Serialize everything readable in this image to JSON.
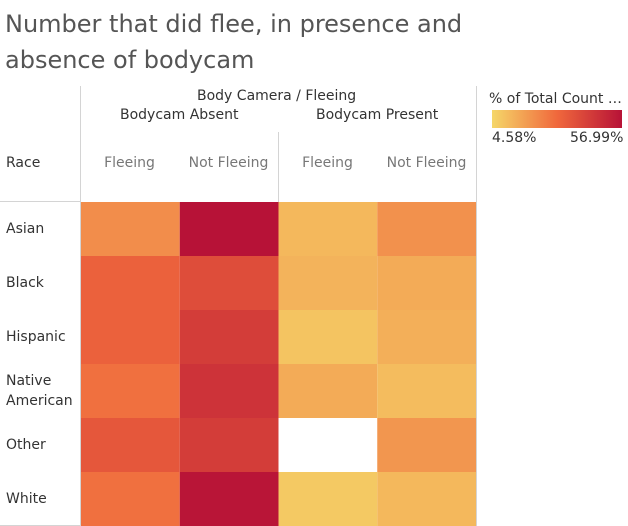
{
  "chart_data": {
    "type": "heatmap",
    "title": "Number that did flee, in presence and absence of bodycam",
    "column_header": "Body Camera / Fleeing",
    "row_header": "Race",
    "column_groups": [
      "Bodycam Absent",
      "Bodycam Present"
    ],
    "columns": [
      {
        "group": "Bodycam Absent",
        "label": "Fleeing"
      },
      {
        "group": "Bodycam Absent",
        "label": "Not Fleeing"
      },
      {
        "group": "Bodycam Present",
        "label": "Fleeing"
      },
      {
        "group": "Bodycam Present",
        "label": "Not Fleeing"
      }
    ],
    "rows": [
      {
        "label": "Asian",
        "values": [
          22,
          57,
          12,
          21
        ]
      },
      {
        "label": "Black",
        "values": [
          33,
          39,
          13,
          15
        ]
      },
      {
        "label": "Hispanic",
        "values": [
          33,
          44,
          9,
          14
        ]
      },
      {
        "label": "Native American",
        "values": [
          29,
          47,
          15,
          11
        ]
      },
      {
        "label": "Other",
        "values": [
          36,
          44,
          null,
          20
        ]
      },
      {
        "label": "White",
        "values": [
          29,
          56,
          8,
          12
        ]
      }
    ],
    "legend": {
      "title": "% of Total Count o..",
      "min_label": "4.58%",
      "max_label": "56.99%",
      "min": 4.58,
      "max": 56.99,
      "color_low": "#f5d769",
      "color_mid": "#f0683c",
      "color_high": "#b71237"
    }
  }
}
